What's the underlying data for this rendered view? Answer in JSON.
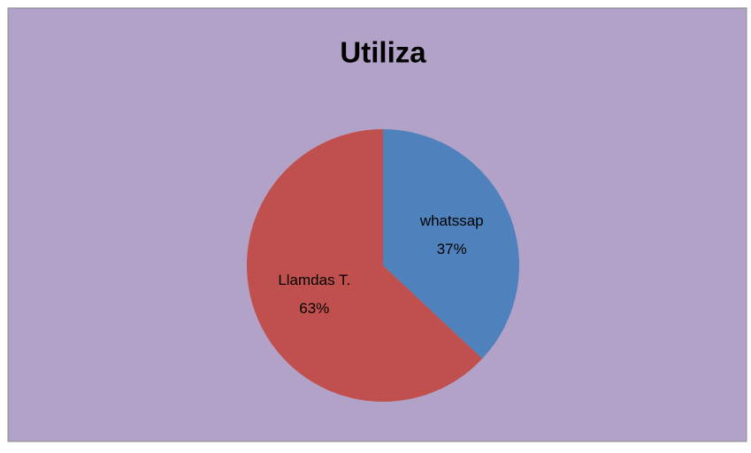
{
  "chart_data": {
    "type": "pie",
    "title": "Utiliza",
    "categories": [
      "whatssap",
      "Llamdas T."
    ],
    "values": [
      37,
      63
    ],
    "value_labels": [
      "37%",
      "63%"
    ],
    "colors": [
      "#4f81bd",
      "#c0504d"
    ]
  }
}
